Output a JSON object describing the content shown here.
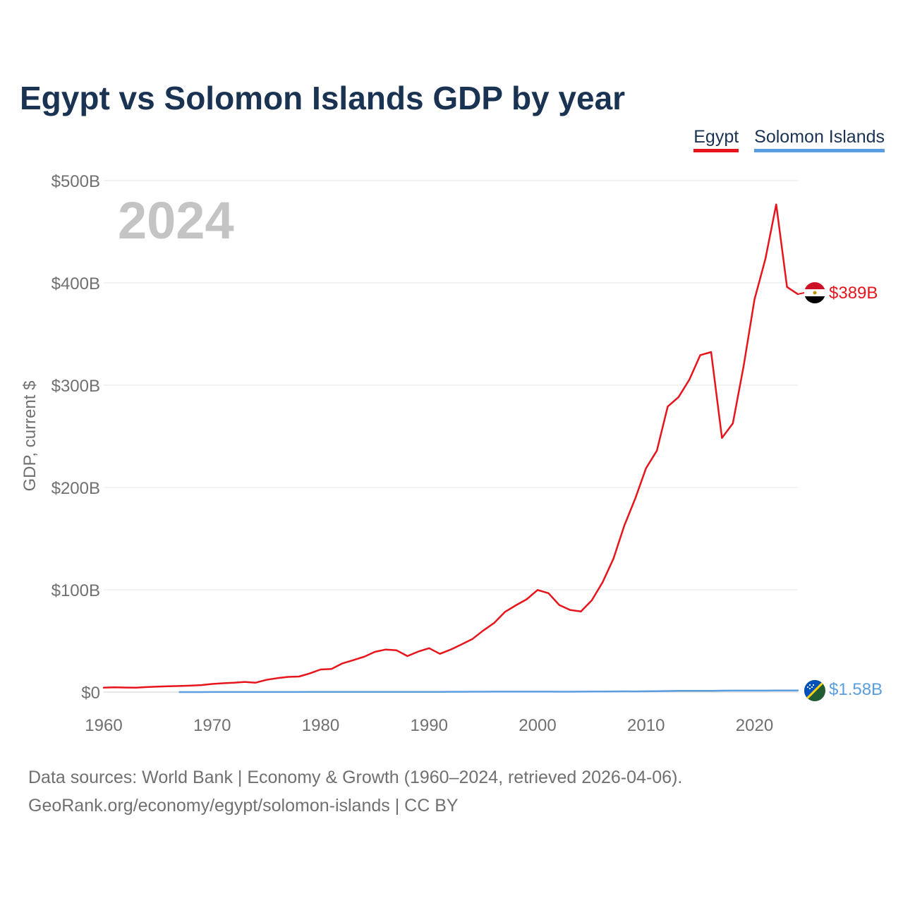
{
  "title": "Egypt vs Solomon Islands GDP by year",
  "legend": [
    {
      "label": "Egypt",
      "color": "#e8141c"
    },
    {
      "label": "Solomon Islands",
      "color": "#5a9ee0"
    }
  ],
  "chart_data": {
    "type": "line",
    "title": "Egypt vs Solomon Islands GDP by year",
    "ylabel": "GDP, current $",
    "xlabel": "",
    "year_label": "2024",
    "xlim": [
      1960,
      2024
    ],
    "ylim": [
      0,
      500
    ],
    "y_unit": "billions of current US$",
    "y_ticks": [
      {
        "value": 0,
        "label": "$0"
      },
      {
        "value": 100,
        "label": "$100B"
      },
      {
        "value": 200,
        "label": "$200B"
      },
      {
        "value": 300,
        "label": "$300B"
      },
      {
        "value": 400,
        "label": "$400B"
      },
      {
        "value": 500,
        "label": "$500B"
      }
    ],
    "x_ticks": [
      {
        "value": 1960,
        "label": "1960"
      },
      {
        "value": 1970,
        "label": "1970"
      },
      {
        "value": 1980,
        "label": "1980"
      },
      {
        "value": 1990,
        "label": "1990"
      },
      {
        "value": 2000,
        "label": "2000"
      },
      {
        "value": 2010,
        "label": "2010"
      },
      {
        "value": 2020,
        "label": "2020"
      }
    ],
    "grid": true,
    "series": [
      {
        "name": "Egypt",
        "color": "#e8141c",
        "end_label": "$389B",
        "x": [
          1960,
          1961,
          1962,
          1963,
          1964,
          1965,
          1966,
          1967,
          1968,
          1969,
          1970,
          1971,
          1972,
          1973,
          1974,
          1975,
          1976,
          1977,
          1978,
          1979,
          1980,
          1981,
          1982,
          1983,
          1984,
          1985,
          1986,
          1987,
          1988,
          1989,
          1990,
          1991,
          1992,
          1993,
          1994,
          1995,
          1996,
          1997,
          1998,
          1999,
          2000,
          2001,
          2002,
          2003,
          2004,
          2005,
          2006,
          2007,
          2008,
          2009,
          2010,
          2011,
          2012,
          2013,
          2014,
          2015,
          2016,
          2017,
          2018,
          2019,
          2020,
          2021,
          2022,
          2023,
          2024
        ],
        "values": [
          4.3,
          4.6,
          4.4,
          4.3,
          4.9,
          5.4,
          5.7,
          5.9,
          6.3,
          6.8,
          7.9,
          8.6,
          9.1,
          9.9,
          9.2,
          11.9,
          13.6,
          14.8,
          15.2,
          18.2,
          22.1,
          22.6,
          28.0,
          31.2,
          34.5,
          39.3,
          41.6,
          40.8,
          35.2,
          39.6,
          42.9,
          37.4,
          41.6,
          46.6,
          51.9,
          60.2,
          67.6,
          78.4,
          84.8,
          90.7,
          99.8,
          96.7,
          85.1,
          80.3,
          78.8,
          89.7,
          107.5,
          130.5,
          162.8,
          189.1,
          218.9,
          236.0,
          279.1,
          288.4,
          305.6,
          329.4,
          332.4,
          248.4,
          262.7,
          318.7,
          383.8,
          423.3,
          476.7,
          396.0,
          389.0
        ]
      },
      {
        "name": "Solomon Islands",
        "color": "#5a9ee0",
        "end_label": "$1.58B",
        "x": [
          1967,
          1968,
          1969,
          1970,
          1971,
          1972,
          1973,
          1974,
          1975,
          1976,
          1977,
          1978,
          1979,
          1980,
          1981,
          1982,
          1983,
          1984,
          1985,
          1986,
          1987,
          1988,
          1989,
          1990,
          1991,
          1992,
          1993,
          1994,
          1995,
          1996,
          1997,
          1998,
          1999,
          2000,
          2001,
          2002,
          2003,
          2004,
          2005,
          2006,
          2007,
          2008,
          2009,
          2010,
          2011,
          2012,
          2013,
          2014,
          2015,
          2016,
          2017,
          2018,
          2019,
          2020,
          2021,
          2022,
          2023,
          2024
        ],
        "values": [
          0.03,
          0.03,
          0.03,
          0.04,
          0.04,
          0.05,
          0.06,
          0.07,
          0.07,
          0.08,
          0.09,
          0.1,
          0.12,
          0.12,
          0.15,
          0.14,
          0.14,
          0.16,
          0.16,
          0.14,
          0.15,
          0.17,
          0.17,
          0.2,
          0.22,
          0.25,
          0.27,
          0.32,
          0.37,
          0.41,
          0.44,
          0.41,
          0.44,
          0.44,
          0.4,
          0.36,
          0.37,
          0.42,
          0.46,
          0.52,
          0.6,
          0.67,
          0.65,
          0.76,
          0.93,
          1.05,
          1.14,
          1.19,
          1.18,
          1.23,
          1.35,
          1.44,
          1.46,
          1.42,
          1.47,
          1.49,
          1.54,
          1.58
        ]
      }
    ]
  },
  "footer": {
    "line1": "Data sources: World Bank | Economy & Growth (1960–2024, retrieved 2026-04-06).",
    "line2": "GeoRank.org/economy/egypt/solomon-islands | CC BY"
  }
}
